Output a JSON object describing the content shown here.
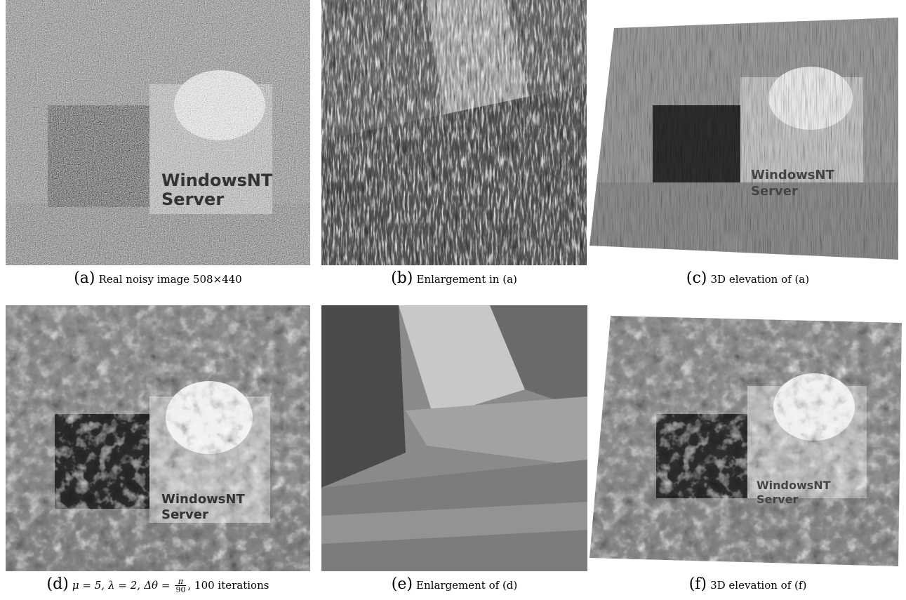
{
  "figure": {
    "panels": [
      {
        "id": "a",
        "letter": "(a)",
        "caption": "Real noisy image 508×440",
        "box_label_1": "WindowsNT",
        "box_label_2": "Server"
      },
      {
        "id": "b",
        "letter": "(b)",
        "caption": "Enlargement in (a)"
      },
      {
        "id": "c",
        "letter": "(c)",
        "caption": "3D elevation of (a)",
        "box_label_1": "WindowsNT",
        "box_label_2": "Server"
      },
      {
        "id": "d",
        "letter": "(d)",
        "caption_parts": {
          "mu": "μ = 5,",
          "lambda": "λ = 2,",
          "dtheta": "Δθ =",
          "num": "π",
          "den": "90",
          "iters": ", 100 iterations"
        },
        "box_label_1": "WindowsNT",
        "box_label_2": "Server"
      },
      {
        "id": "e",
        "letter": "(e)",
        "caption": "Enlargement of (d)"
      },
      {
        "id": "f",
        "letter": "(f)",
        "caption": "3D elevation of (f)",
        "box_label_1": "WindowsNT",
        "box_label_2": "Server"
      }
    ]
  }
}
